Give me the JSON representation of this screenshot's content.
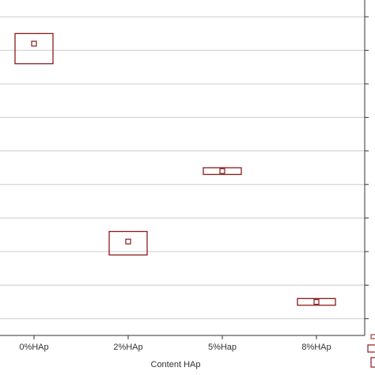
{
  "chart_data": {
    "type": "box",
    "title": "",
    "xlabel": "Content HAp",
    "ylabel": "",
    "categories": [
      "0%HAp",
      "2%HAp",
      "5%Hap",
      "8%HAp"
    ],
    "series": [
      {
        "mean": [
          103.2,
          97.3,
          99.4,
          95.5
        ],
        "box_low": [
          102.6,
          96.9,
          99.3,
          95.4
        ],
        "box_high": [
          103.5,
          97.6,
          99.5,
          95.6
        ]
      }
    ],
    "ylim": [
      94.5,
      104.5
    ],
    "gridlines": [
      95,
      96,
      97,
      98,
      99,
      100,
      101,
      102,
      103,
      104
    ],
    "grid": true,
    "legend": "bottom-right, partially visible",
    "colors": {
      "box": "#8b1a1a",
      "grid": "#cccccc",
      "axis": "#333333"
    }
  }
}
